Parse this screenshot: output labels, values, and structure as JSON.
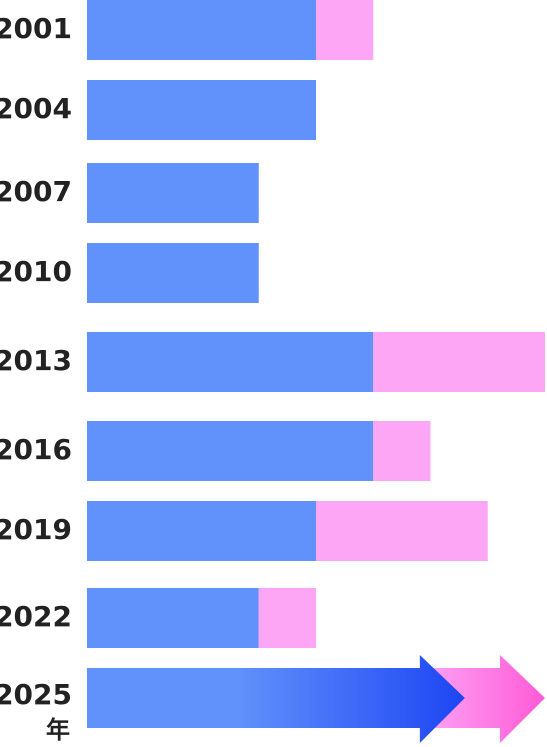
{
  "chart_data": {
    "type": "stacked-bar-horizontal",
    "categories": [
      "2001",
      "2004",
      "2007",
      "2010",
      "2013",
      "2016",
      "2019",
      "2022",
      "2025"
    ],
    "unit": "年",
    "series": [
      {
        "color": "#6191fb",
        "values": [
          4,
          4,
          3,
          3,
          5,
          5,
          4,
          3,
          6.6
        ]
      },
      {
        "color": "#fda6f6",
        "values": [
          1,
          0,
          0,
          0,
          3,
          1,
          3,
          1,
          1.4
        ]
      }
    ],
    "last_bar_style": "arrow",
    "arrow_colors": [
      "#1d45f3",
      "#ff5ad6"
    ],
    "xlim": [
      0,
      8
    ]
  }
}
